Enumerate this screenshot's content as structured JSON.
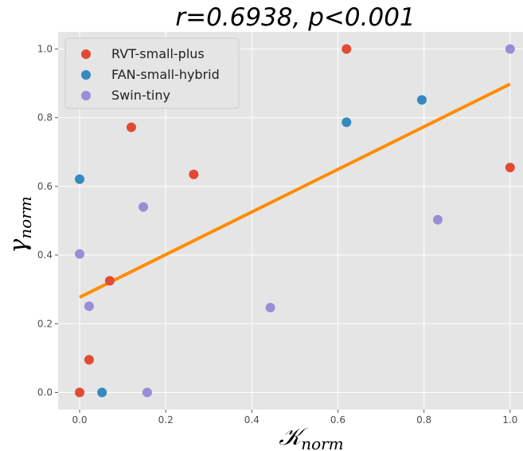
{
  "chart_data": {
    "type": "scatter",
    "title": "r=0.6938, p<0.001",
    "xlabel": "𝒦",
    "xlabel_sub": "norm",
    "ylabel": "γ",
    "ylabel_sub": "norm",
    "xlim": [
      -0.05,
      1.03
    ],
    "ylim": [
      -0.05,
      1.05
    ],
    "x_ticks": [
      0.0,
      0.2,
      0.4,
      0.6,
      0.8,
      1.0
    ],
    "x_tick_labels": [
      "0.0",
      "0.2",
      "0.4",
      "0.6",
      "0.8",
      "1.0"
    ],
    "y_ticks": [
      0.0,
      0.2,
      0.4,
      0.6,
      0.8,
      1.0
    ],
    "y_tick_labels": [
      "0.0",
      "0.2",
      "0.4",
      "0.6",
      "0.8",
      "1.0"
    ],
    "grid": true,
    "legend_position": "top-left",
    "background": "#e5e5e5",
    "series": [
      {
        "name": "RVT-small-plus",
        "color": "#e24a33",
        "points": [
          {
            "x": 0.0,
            "y": 0.0
          },
          {
            "x": 0.022,
            "y": 0.095
          },
          {
            "x": 0.07,
            "y": 0.325
          },
          {
            "x": 0.12,
            "y": 0.772
          },
          {
            "x": 0.265,
            "y": 0.635
          },
          {
            "x": 0.62,
            "y": 1.0
          },
          {
            "x": 1.0,
            "y": 0.655
          }
        ]
      },
      {
        "name": "FAN-small-hybrid",
        "color": "#348abd",
        "points": [
          {
            "x": 0.0,
            "y": 0.621
          },
          {
            "x": 0.052,
            "y": 0.0
          },
          {
            "x": 0.62,
            "y": 0.787
          },
          {
            "x": 0.795,
            "y": 0.852
          }
        ]
      },
      {
        "name": "Swin-tiny",
        "color": "#988ed5",
        "points": [
          {
            "x": 0.0,
            "y": 0.403
          },
          {
            "x": 0.022,
            "y": 0.251
          },
          {
            "x": 0.148,
            "y": 0.54
          },
          {
            "x": 0.157,
            "y": 0.0
          },
          {
            "x": 0.443,
            "y": 0.247
          },
          {
            "x": 0.832,
            "y": 0.503
          },
          {
            "x": 1.0,
            "y": 1.0
          }
        ]
      }
    ],
    "regression_line": {
      "color": "#ff8c00",
      "x": [
        0.0,
        1.0
      ],
      "y": [
        0.277,
        0.898
      ]
    }
  }
}
